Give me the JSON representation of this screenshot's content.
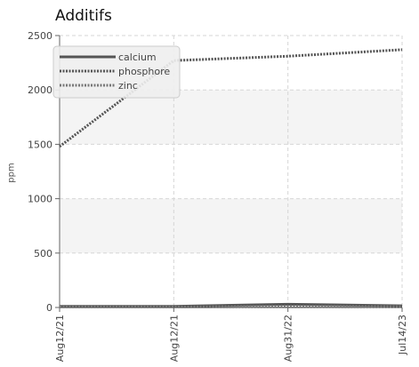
{
  "chart_data": {
    "type": "line",
    "title": "Additifs",
    "xlabel": "",
    "ylabel": "ppm",
    "categories": [
      "Aug12/21",
      "Aug12/21",
      "Aug31/22",
      "Jul14/23"
    ],
    "ylim": [
      0,
      2500
    ],
    "yticks": [
      0,
      500,
      1000,
      1500,
      2000,
      2500
    ],
    "grid": true,
    "legend_position": "top-left",
    "series": [
      {
        "name": "calcium",
        "values": [
          10,
          10,
          30,
          15
        ],
        "color": "#555555",
        "style": "solid"
      },
      {
        "name": "phosphore",
        "values": [
          1480,
          2270,
          2310,
          2370
        ],
        "color": "#555555",
        "style": "dotted"
      },
      {
        "name": "zinc",
        "values": [
          5,
          5,
          10,
          8
        ],
        "color": "#777777",
        "style": "dotted"
      }
    ]
  }
}
